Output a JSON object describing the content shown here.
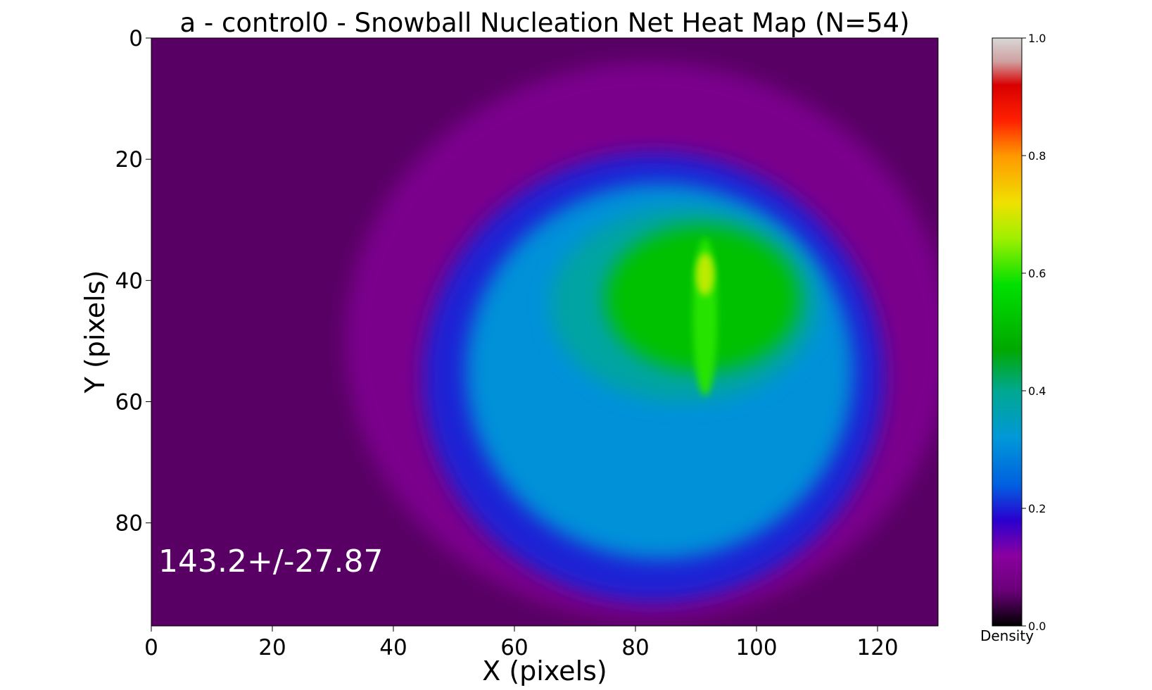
{
  "chart_data": {
    "type": "heatmap",
    "title": "a - control0 - Snowball Nucleation Net Heat Map (N=54)",
    "xlabel": "X (pixels)",
    "ylabel": "Y (pixels)",
    "xlim": [
      0,
      130
    ],
    "ylim": [
      97,
      0
    ],
    "x_ticks": [
      0,
      20,
      40,
      60,
      80,
      100,
      120
    ],
    "y_ticks": [
      0,
      20,
      40,
      60,
      80
    ],
    "colorbar": {
      "label": "Density",
      "range": [
        0.0,
        1.0
      ],
      "ticks": [
        0.0,
        0.2,
        0.4,
        0.6,
        0.8,
        1.0
      ],
      "tick_labels": [
        "0.0",
        "0.2",
        "0.4",
        "0.6",
        "0.8",
        "1.0"
      ],
      "colormap": [
        {
          "v": 0.0,
          "color": "#000000"
        },
        {
          "v": 0.06,
          "color": "#6a0078"
        },
        {
          "v": 0.12,
          "color": "#8a00a0"
        },
        {
          "v": 0.18,
          "color": "#2a00d0"
        },
        {
          "v": 0.24,
          "color": "#0060e0"
        },
        {
          "v": 0.32,
          "color": "#0098d8"
        },
        {
          "v": 0.4,
          "color": "#00a890"
        },
        {
          "v": 0.47,
          "color": "#00a800"
        },
        {
          "v": 0.58,
          "color": "#00e000"
        },
        {
          "v": 0.66,
          "color": "#a0f000"
        },
        {
          "v": 0.72,
          "color": "#f0e000"
        },
        {
          "v": 0.8,
          "color": "#ff9800"
        },
        {
          "v": 0.86,
          "color": "#ff2000"
        },
        {
          "v": 0.92,
          "color": "#d80000"
        },
        {
          "v": 0.96,
          "color": "#d0a0a0"
        },
        {
          "v": 1.0,
          "color": "#d8d8d8"
        }
      ]
    },
    "annotation": "143.2+/-27.87",
    "density_regions": [
      {
        "name": "background",
        "value": 0.05
      },
      {
        "name": "outer-blob",
        "cx": 82,
        "cy": 50,
        "rx": 50,
        "ry": 46,
        "value": 0.09
      },
      {
        "name": "blue-ring",
        "cx": 83,
        "cy": 56,
        "rx": 38,
        "ry": 37,
        "value": 0.2
      },
      {
        "name": "cyan-core",
        "cx": 84,
        "cy": 55,
        "rx": 32,
        "ry": 31,
        "value": 0.31
      },
      {
        "name": "teal-upper",
        "cx": 88,
        "cy": 44,
        "rx": 22,
        "ry": 16,
        "value": 0.38
      },
      {
        "name": "green-core",
        "cx": 91,
        "cy": 43,
        "rx": 16,
        "ry": 12,
        "value": 0.52
      },
      {
        "name": "bright-streak",
        "cx": 91.5,
        "cy": 46,
        "rx": 2,
        "ry": 13,
        "value": 0.6
      },
      {
        "name": "hot-spot",
        "cx": 91.5,
        "cy": 39,
        "rx": 1.5,
        "ry": 3.5,
        "value": 0.68
      }
    ]
  }
}
